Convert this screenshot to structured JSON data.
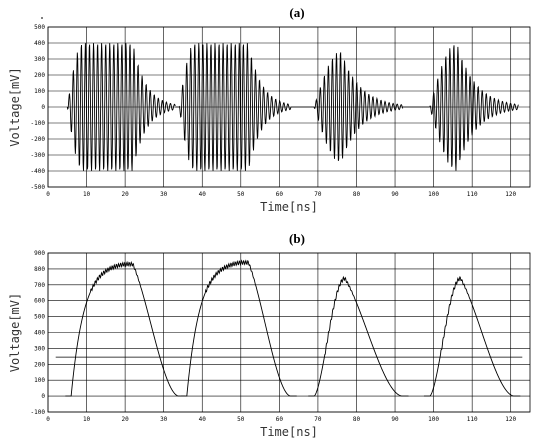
{
  "chart_data": [
    {
      "type": "line",
      "panel": "(a)",
      "xlabel": "Time[ns]",
      "ylabel": "Voltage[mV]",
      "xlim": [
        0,
        125
      ],
      "ylim": [
        -500,
        500
      ],
      "xticks": [
        "0",
        "10",
        "20",
        "30",
        "40",
        "50",
        "60",
        "70",
        "80",
        "90",
        "100",
        "110",
        "120"
      ],
      "yticks": [
        "500",
        "400",
        "300",
        "200",
        "100",
        "0",
        "-100",
        "-200",
        "-300",
        "-400",
        "-500"
      ],
      "grid": true,
      "description_of_series": "RF oscillation bursts (envelope amplitude in mV)",
      "bursts": [
        {
          "x_start": 5,
          "x_flat_start": 9,
          "x_flat_end": 22,
          "x_end": 33,
          "amplitude": 400
        },
        {
          "x_start": 34,
          "x_flat_start": 38,
          "x_flat_end": 52,
          "x_end": 63,
          "amplitude": 400
        },
        {
          "x_start": 69,
          "x_flat_start": 76,
          "x_flat_end": 76,
          "x_end": 92,
          "amplitude": 350
        },
        {
          "x_start": 99,
          "x_flat_start": 106,
          "x_flat_end": 106,
          "x_end": 122,
          "amplitude": 400
        }
      ]
    },
    {
      "type": "line",
      "panel": "(b)",
      "xlabel": "Time[ns]",
      "ylabel": "Voltage[mV]",
      "xlim": [
        0,
        125
      ],
      "ylim": [
        -100,
        900
      ],
      "xticks": [
        "0",
        "10",
        "20",
        "30",
        "40",
        "50",
        "60",
        "70",
        "80",
        "90",
        "100",
        "110",
        "120"
      ],
      "yticks": [
        "900",
        "800",
        "700",
        "600",
        "500",
        "400",
        "300",
        "200",
        "100",
        "0",
        "-100"
      ],
      "grid": true,
      "threshold_level": 245,
      "pulses": [
        {
          "x_start": 6,
          "x_peak": 20,
          "x_peak_end": 22,
          "x_end": 34,
          "peak": 830
        },
        {
          "x_start": 36,
          "x_peak": 50,
          "x_peak_end": 52,
          "x_end": 63,
          "peak": 840
        },
        {
          "x_start": 69,
          "x_peak": 77,
          "x_peak_end": 77,
          "x_end": 92,
          "peak": 740
        },
        {
          "x_start": 99,
          "x_peak": 107,
          "x_peak_end": 107,
          "x_end": 121,
          "peak": 740
        }
      ]
    }
  ]
}
